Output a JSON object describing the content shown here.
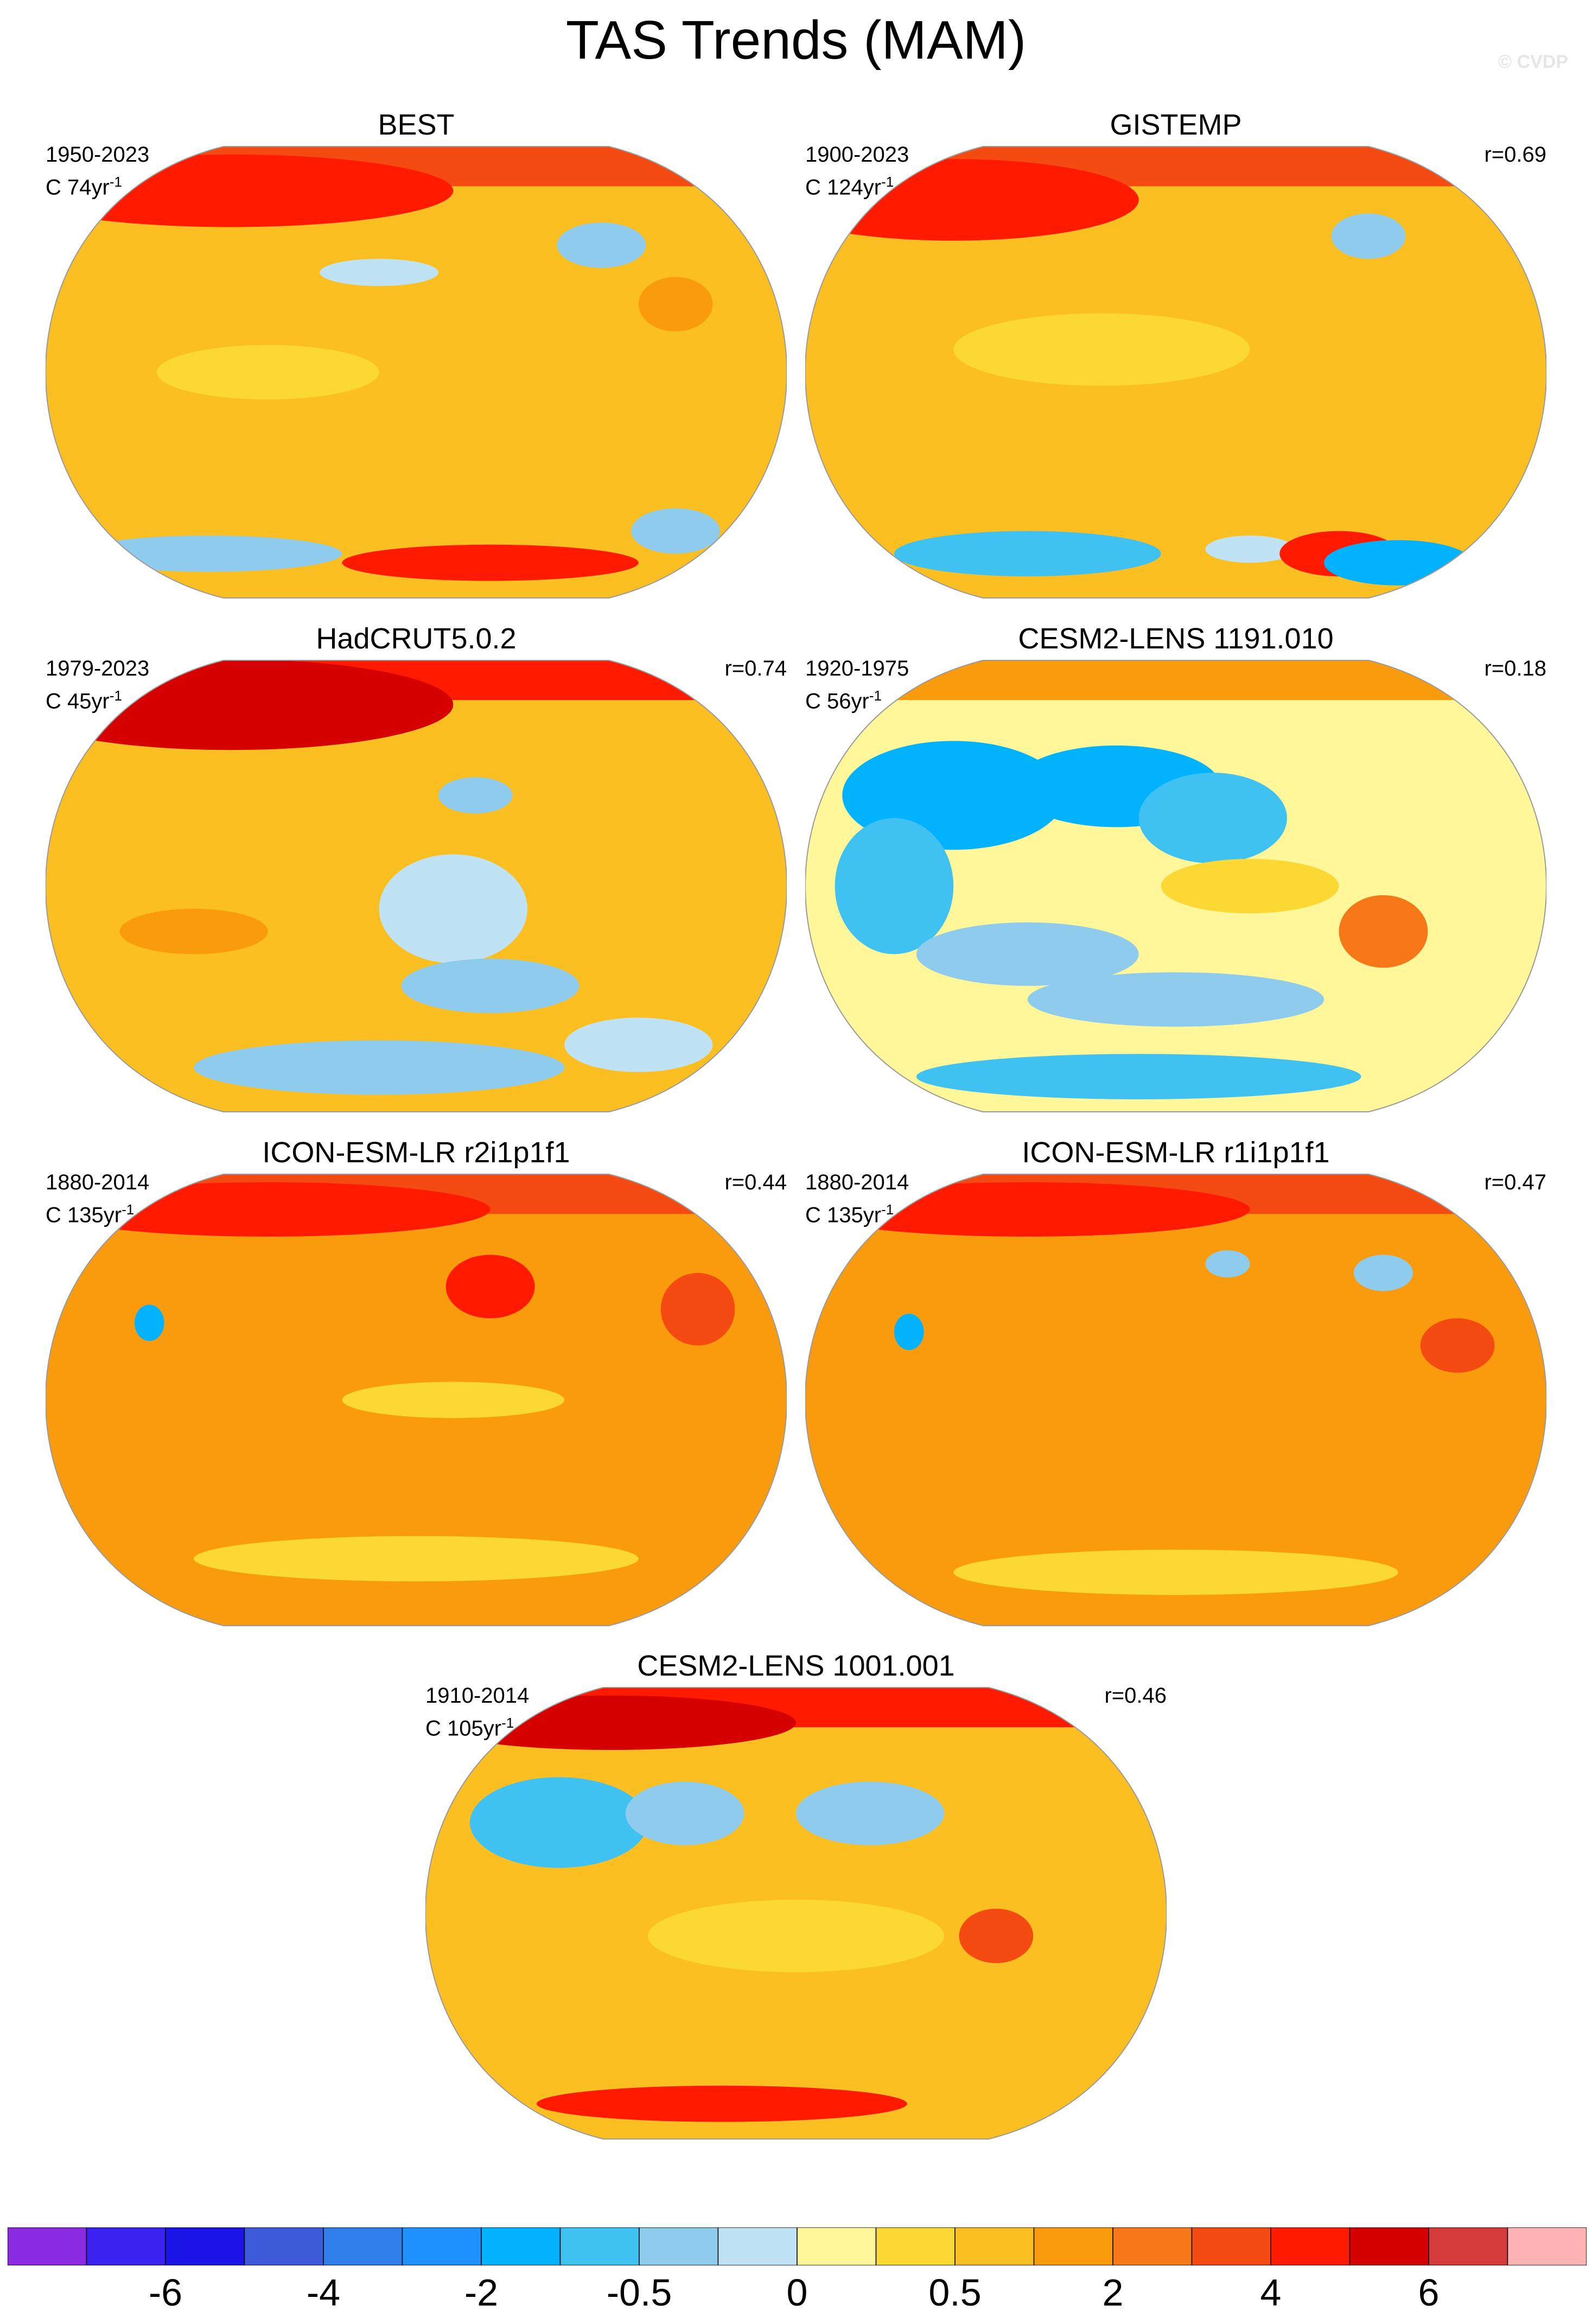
{
  "title": "TAS Trends (MAM)",
  "watermark": "© CVDP",
  "chart_data": {
    "type": "heatmap",
    "projection": "Robinson-like global map (Pacific-centred)",
    "colorbar": {
      "tick_labels": [
        "-6",
        "-4",
        "-2",
        "-0.5",
        "0",
        "0.5",
        "2",
        "4",
        "6"
      ],
      "colors": [
        "#8a2be2",
        "#3a22f0",
        "#1a14e6",
        "#3d5bd9",
        "#2f7de8",
        "#1e90ff",
        "#00b2ff",
        "#3fc1f2",
        "#8fcbec",
        "#bfe3f5",
        "#fff799",
        "#fcd834",
        "#fbbf21",
        "#f99b0c",
        "#f77818",
        "#f54a12",
        "#ff1a00",
        "#d50000",
        "#d63b3b",
        "#ffb3b3"
      ]
    },
    "panels": [
      {
        "title": "BEST",
        "period": "1950-2023",
        "coverage": "C 74yr",
        "coverage_exp": "-1",
        "r": ""
      },
      {
        "title": "GISTEMP",
        "period": "1900-2023",
        "coverage": "C 124yr",
        "coverage_exp": "-1",
        "r": "r=0.69"
      },
      {
        "title": "HadCRUT5.0.2",
        "period": "1979-2023",
        "coverage": "C 45yr",
        "coverage_exp": "-1",
        "r": "r=0.74"
      },
      {
        "title": "CESM2-LENS 1191.010",
        "period": "1920-1975",
        "coverage": "C 56yr",
        "coverage_exp": "-1",
        "r": "r=0.18"
      },
      {
        "title": "ICON-ESM-LR r2i1p1f1",
        "period": "1880-2014",
        "coverage": "C 135yr",
        "coverage_exp": "-1",
        "r": "r=0.44"
      },
      {
        "title": "ICON-ESM-LR r1i1p1f1",
        "period": "1880-2014",
        "coverage": "C 135yr",
        "coverage_exp": "-1",
        "r": "r=0.47"
      },
      {
        "title": "CESM2-LENS 1001.001",
        "period": "1910-2014",
        "coverage": "C 105yr",
        "coverage_exp": "-1",
        "r": "r=0.46"
      }
    ]
  }
}
